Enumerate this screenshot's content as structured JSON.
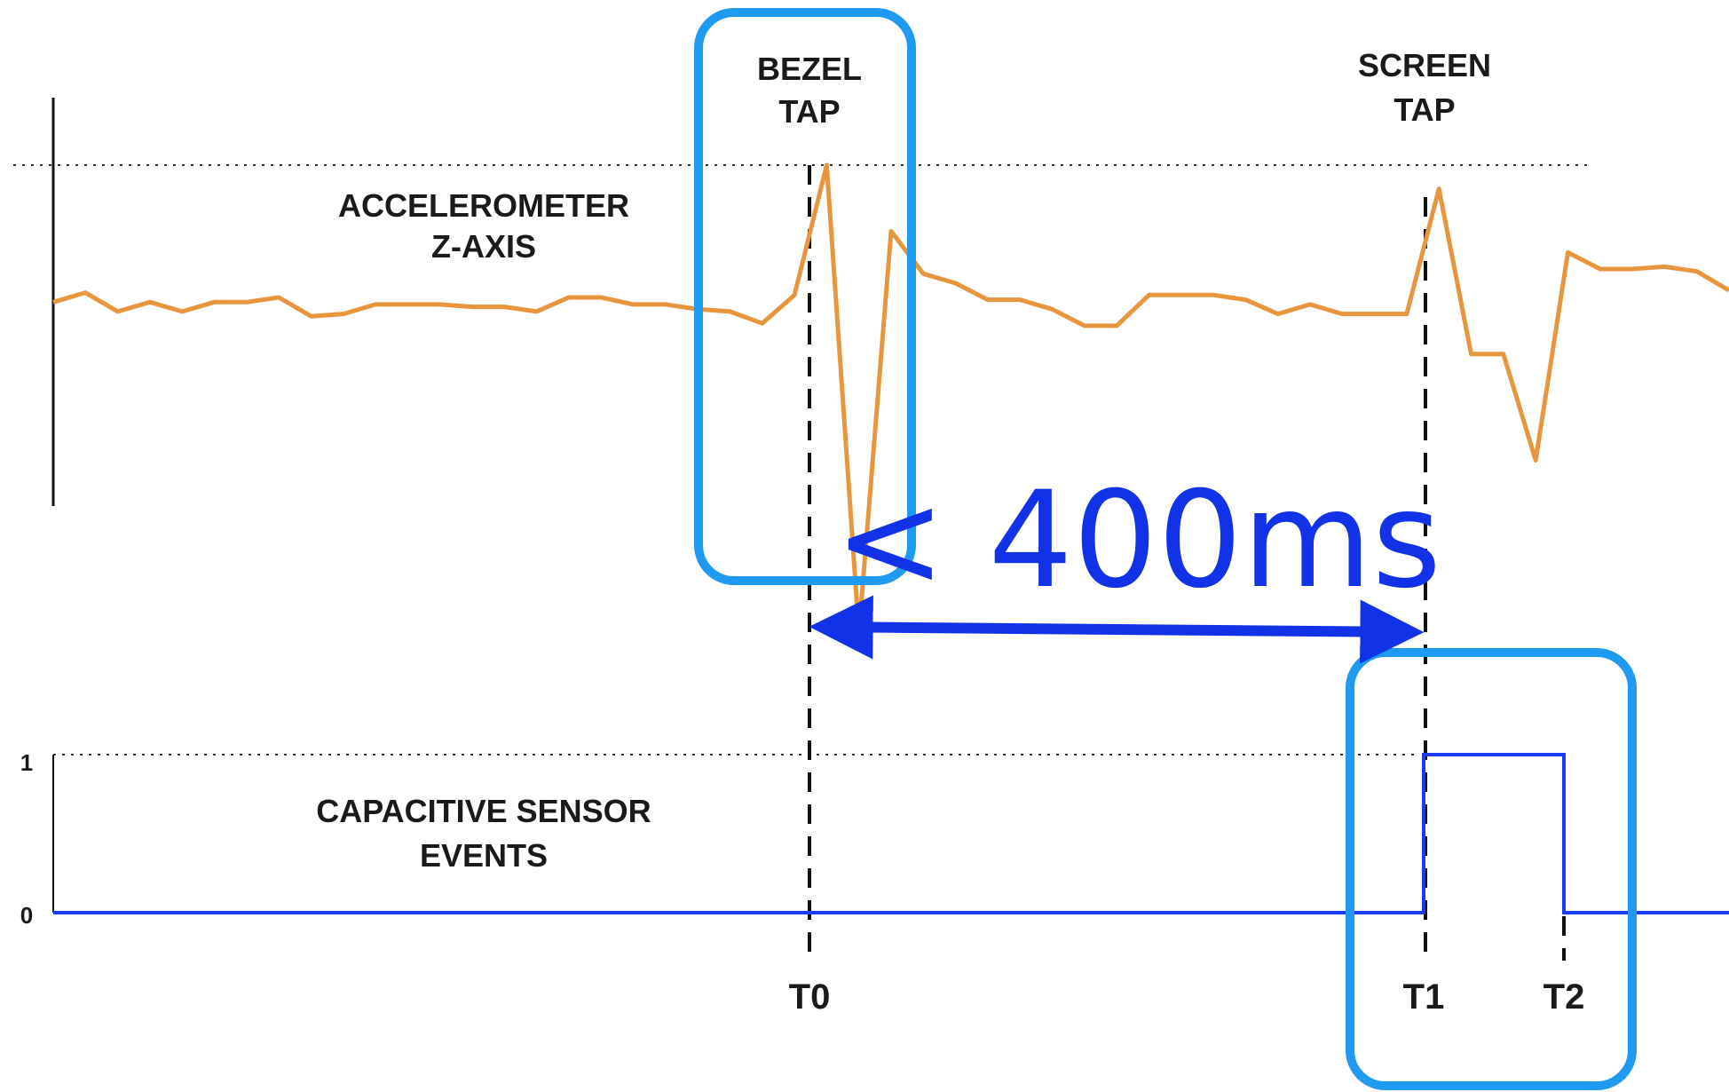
{
  "chart_data": {
    "type": "line",
    "annotations": {
      "bezel_tap": [
        "BEZEL",
        "TAP"
      ],
      "screen_tap": [
        "SCREEN",
        "TAP"
      ],
      "interval": "< 400ms"
    },
    "series": [
      {
        "name": "ACCELEROMETER Z-AXIS",
        "name_lines": [
          "ACCELEROMETER",
          "Z-AXIS"
        ],
        "color": "#e8963e",
        "values": [
          0.42,
          0.46,
          0.38,
          0.42,
          0.38,
          0.42,
          0.42,
          0.44,
          0.36,
          0.37,
          0.41,
          0.41,
          0.41,
          0.4,
          0.4,
          0.38,
          0.44,
          0.44,
          0.41,
          0.41,
          0.39,
          0.38,
          0.33,
          0.45,
          1.0,
          -0.98,
          0.72,
          0.54,
          0.5,
          0.43,
          0.43,
          0.39,
          0.32,
          0.32,
          0.45,
          0.45,
          0.45,
          0.43,
          0.37,
          0.41,
          0.37,
          0.37,
          0.37,
          0.9,
          0.2,
          0.2,
          -0.25,
          0.63,
          0.56,
          0.56,
          0.57,
          0.55,
          0.47
        ]
      },
      {
        "name": "CAPACITIVE SENSOR EVENTS",
        "name_lines": [
          "CAPACITIVE SENSOR",
          "EVENTS"
        ],
        "color": "#1a3cf0",
        "steps": [
          {
            "from": "start",
            "to": "T1",
            "value": 0
          },
          {
            "from": "T1",
            "to": "T2",
            "value": 1
          },
          {
            "from": "T2",
            "to": "end",
            "value": 0
          }
        ]
      }
    ],
    "yticks": [
      "1",
      "0"
    ],
    "time_markers": [
      "T0",
      "T1",
      "T2"
    ],
    "accent_colors": {
      "highlight_box": "#1e9bf0",
      "arrow": "#1232e8",
      "accel_line": "#e8963e",
      "step_line": "#1a3cf0"
    }
  }
}
